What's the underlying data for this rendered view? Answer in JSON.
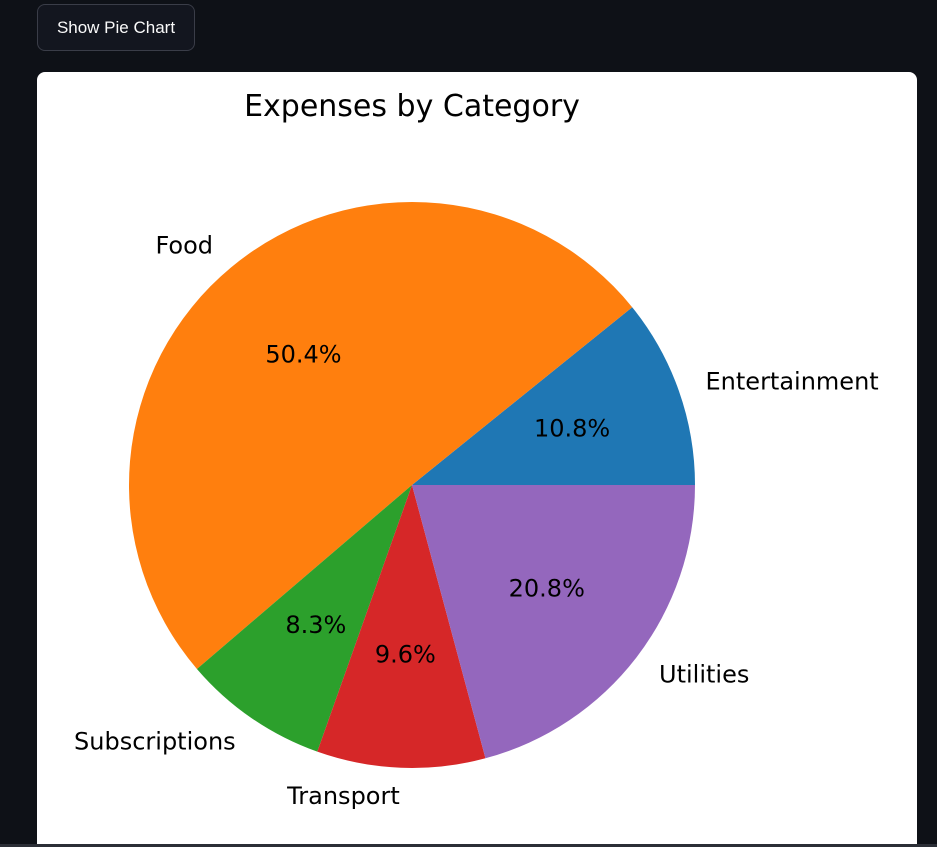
{
  "toolbar": {
    "show_pie_chart_label": "Show Pie Chart"
  },
  "chart_data": {
    "type": "pie",
    "title": "Expenses by Category",
    "start_angle": 0,
    "direction": "counterclockwise",
    "slices": [
      {
        "label": "Entertainment",
        "value": 10.8,
        "pct_label": "10.8%",
        "color": "#1f77b4"
      },
      {
        "label": "Food",
        "value": 50.4,
        "pct_label": "50.4%",
        "color": "#ff7f0e"
      },
      {
        "label": "Subscriptions",
        "value": 8.3,
        "pct_label": "8.3%",
        "color": "#2ca02c"
      },
      {
        "label": "Transport",
        "value": 9.6,
        "pct_label": "9.6%",
        "color": "#d62728"
      },
      {
        "label": "Utilities",
        "value": 20.8,
        "pct_label": "20.8%",
        "color": "#9467bd"
      }
    ]
  }
}
